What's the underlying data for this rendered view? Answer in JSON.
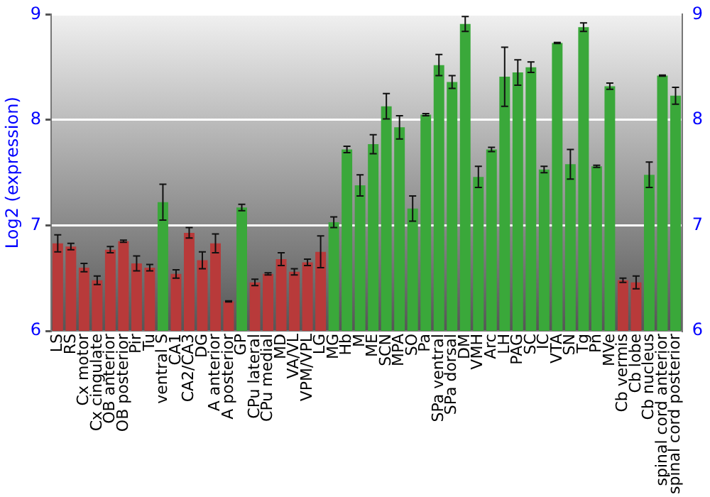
{
  "chart_data": {
    "type": "bar",
    "ylabel": "Log2 (expression)",
    "categories": [
      "LS",
      "RS",
      "Cx motor",
      "Cx cingulate",
      "OB anterior",
      "OB posterior",
      "Pir",
      "Tu",
      "ventral S",
      "CA1",
      "CA2/CA3",
      "DG",
      "A anterior",
      "A posterior",
      "GP",
      "CPu lateral",
      "CPu medial",
      "MD",
      "VA/VL",
      "VPM/VPL",
      "LG",
      "MG",
      "Hb",
      "M",
      "ME",
      "SCN",
      "MPA",
      "SO",
      "Pa",
      "SPa ventral",
      "SPa dorsal",
      "DM",
      "VMH",
      "Arc",
      "LH",
      "PAG",
      "SC",
      "IC",
      "VTA",
      "SN",
      "Tg",
      "Pn",
      "MVe",
      "Cb vermis",
      "Cb lobe",
      "Cb nucleus",
      "spinal cord anterior",
      "spinal cord posterior"
    ],
    "values": [
      6.83,
      6.8,
      6.6,
      6.48,
      6.77,
      6.85,
      6.64,
      6.6,
      7.22,
      6.54,
      6.93,
      6.67,
      6.83,
      6.28,
      7.17,
      6.46,
      6.54,
      6.68,
      6.56,
      6.65,
      6.75,
      7.03,
      7.72,
      7.38,
      7.77,
      8.13,
      7.93,
      7.16,
      8.05,
      8.52,
      8.36,
      8.91,
      7.46,
      7.72,
      8.41,
      8.45,
      8.5,
      7.53,
      8.73,
      7.58,
      8.88,
      7.56,
      8.32,
      6.48,
      6.46,
      7.48,
      8.42,
      8.23
    ],
    "errors": [
      0.08,
      0.03,
      0.04,
      0.04,
      0.03,
      0.01,
      0.07,
      0.03,
      0.17,
      0.04,
      0.05,
      0.08,
      0.09,
      0.005,
      0.03,
      0.03,
      0.01,
      0.06,
      0.03,
      0.03,
      0.15,
      0.05,
      0.03,
      0.1,
      0.09,
      0.12,
      0.11,
      0.12,
      0.01,
      0.1,
      0.06,
      0.07,
      0.1,
      0.02,
      0.28,
      0.12,
      0.05,
      0.03,
      0.005,
      0.14,
      0.04,
      0.01,
      0.03,
      0.02,
      0.06,
      0.12,
      0.005,
      0.08
    ],
    "colors": [
      "#b83a3a",
      "#b83a3a",
      "#b83a3a",
      "#b83a3a",
      "#b83a3a",
      "#b83a3a",
      "#b83a3a",
      "#b83a3a",
      "#3aa83a",
      "#b83a3a",
      "#b83a3a",
      "#b83a3a",
      "#b83a3a",
      "#b83a3a",
      "#3aa83a",
      "#b83a3a",
      "#b83a3a",
      "#b83a3a",
      "#b83a3a",
      "#b83a3a",
      "#b83a3a",
      "#3aa83a",
      "#3aa83a",
      "#3aa83a",
      "#3aa83a",
      "#3aa83a",
      "#3aa83a",
      "#3aa83a",
      "#3aa83a",
      "#3aa83a",
      "#3aa83a",
      "#3aa83a",
      "#3aa83a",
      "#3aa83a",
      "#3aa83a",
      "#3aa83a",
      "#3aa83a",
      "#3aa83a",
      "#3aa83a",
      "#3aa83a",
      "#3aa83a",
      "#3aa83a",
      "#3aa83a",
      "#b83a3a",
      "#b83a3a",
      "#3aa83a",
      "#3aa83a",
      "#3aa83a"
    ],
    "ylim": [
      6,
      9
    ],
    "yticks": [
      6,
      7,
      8,
      9
    ],
    "y2lim": [
      6,
      9
    ],
    "y2ticks": [
      6,
      7,
      8,
      9
    ],
    "grid": "y",
    "legend": false
  }
}
